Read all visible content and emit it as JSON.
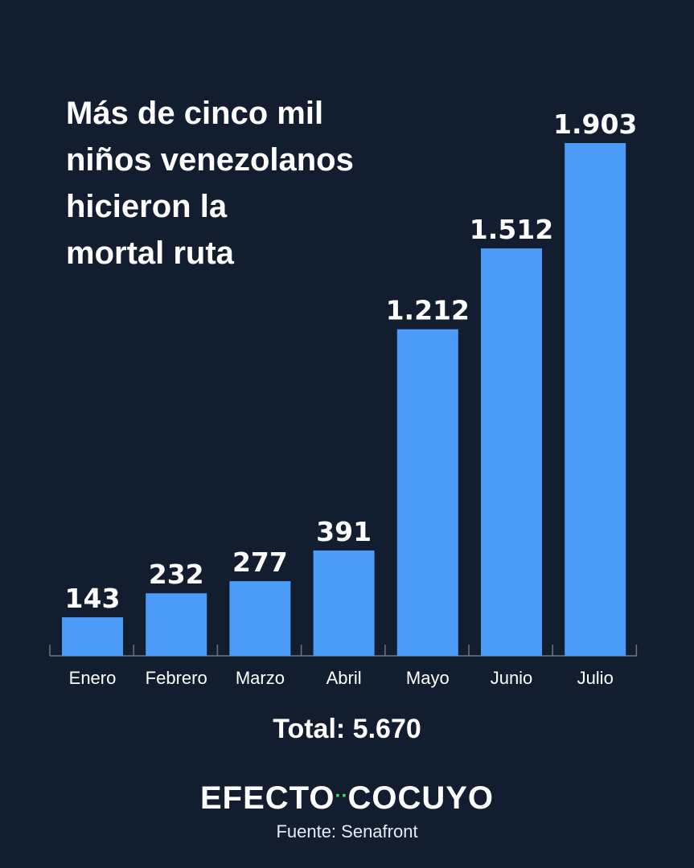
{
  "chart_data": {
    "type": "bar",
    "title_lines": [
      "Más de cinco mil",
      "niños venezolanos",
      "hicieron la",
      "mortal ruta"
    ],
    "categories": [
      "Enero",
      "Febrero",
      "Marzo",
      "Abril",
      "Mayo",
      "Junio",
      "Julio"
    ],
    "values": [
      143,
      232,
      277,
      391,
      1212,
      1512,
      1903
    ],
    "value_labels": [
      "143",
      "232",
      "277",
      "391",
      "1.212",
      "1.512",
      "1.903"
    ],
    "bar_color": "#4d9bf8",
    "grid": false
  },
  "total_label": "Total: 5.670",
  "brand": {
    "left": "EFECTO",
    "dots": "··",
    "right": "COCUYO",
    "accent_color": "#4cd964"
  },
  "source_label": "Fuente: Senafront"
}
